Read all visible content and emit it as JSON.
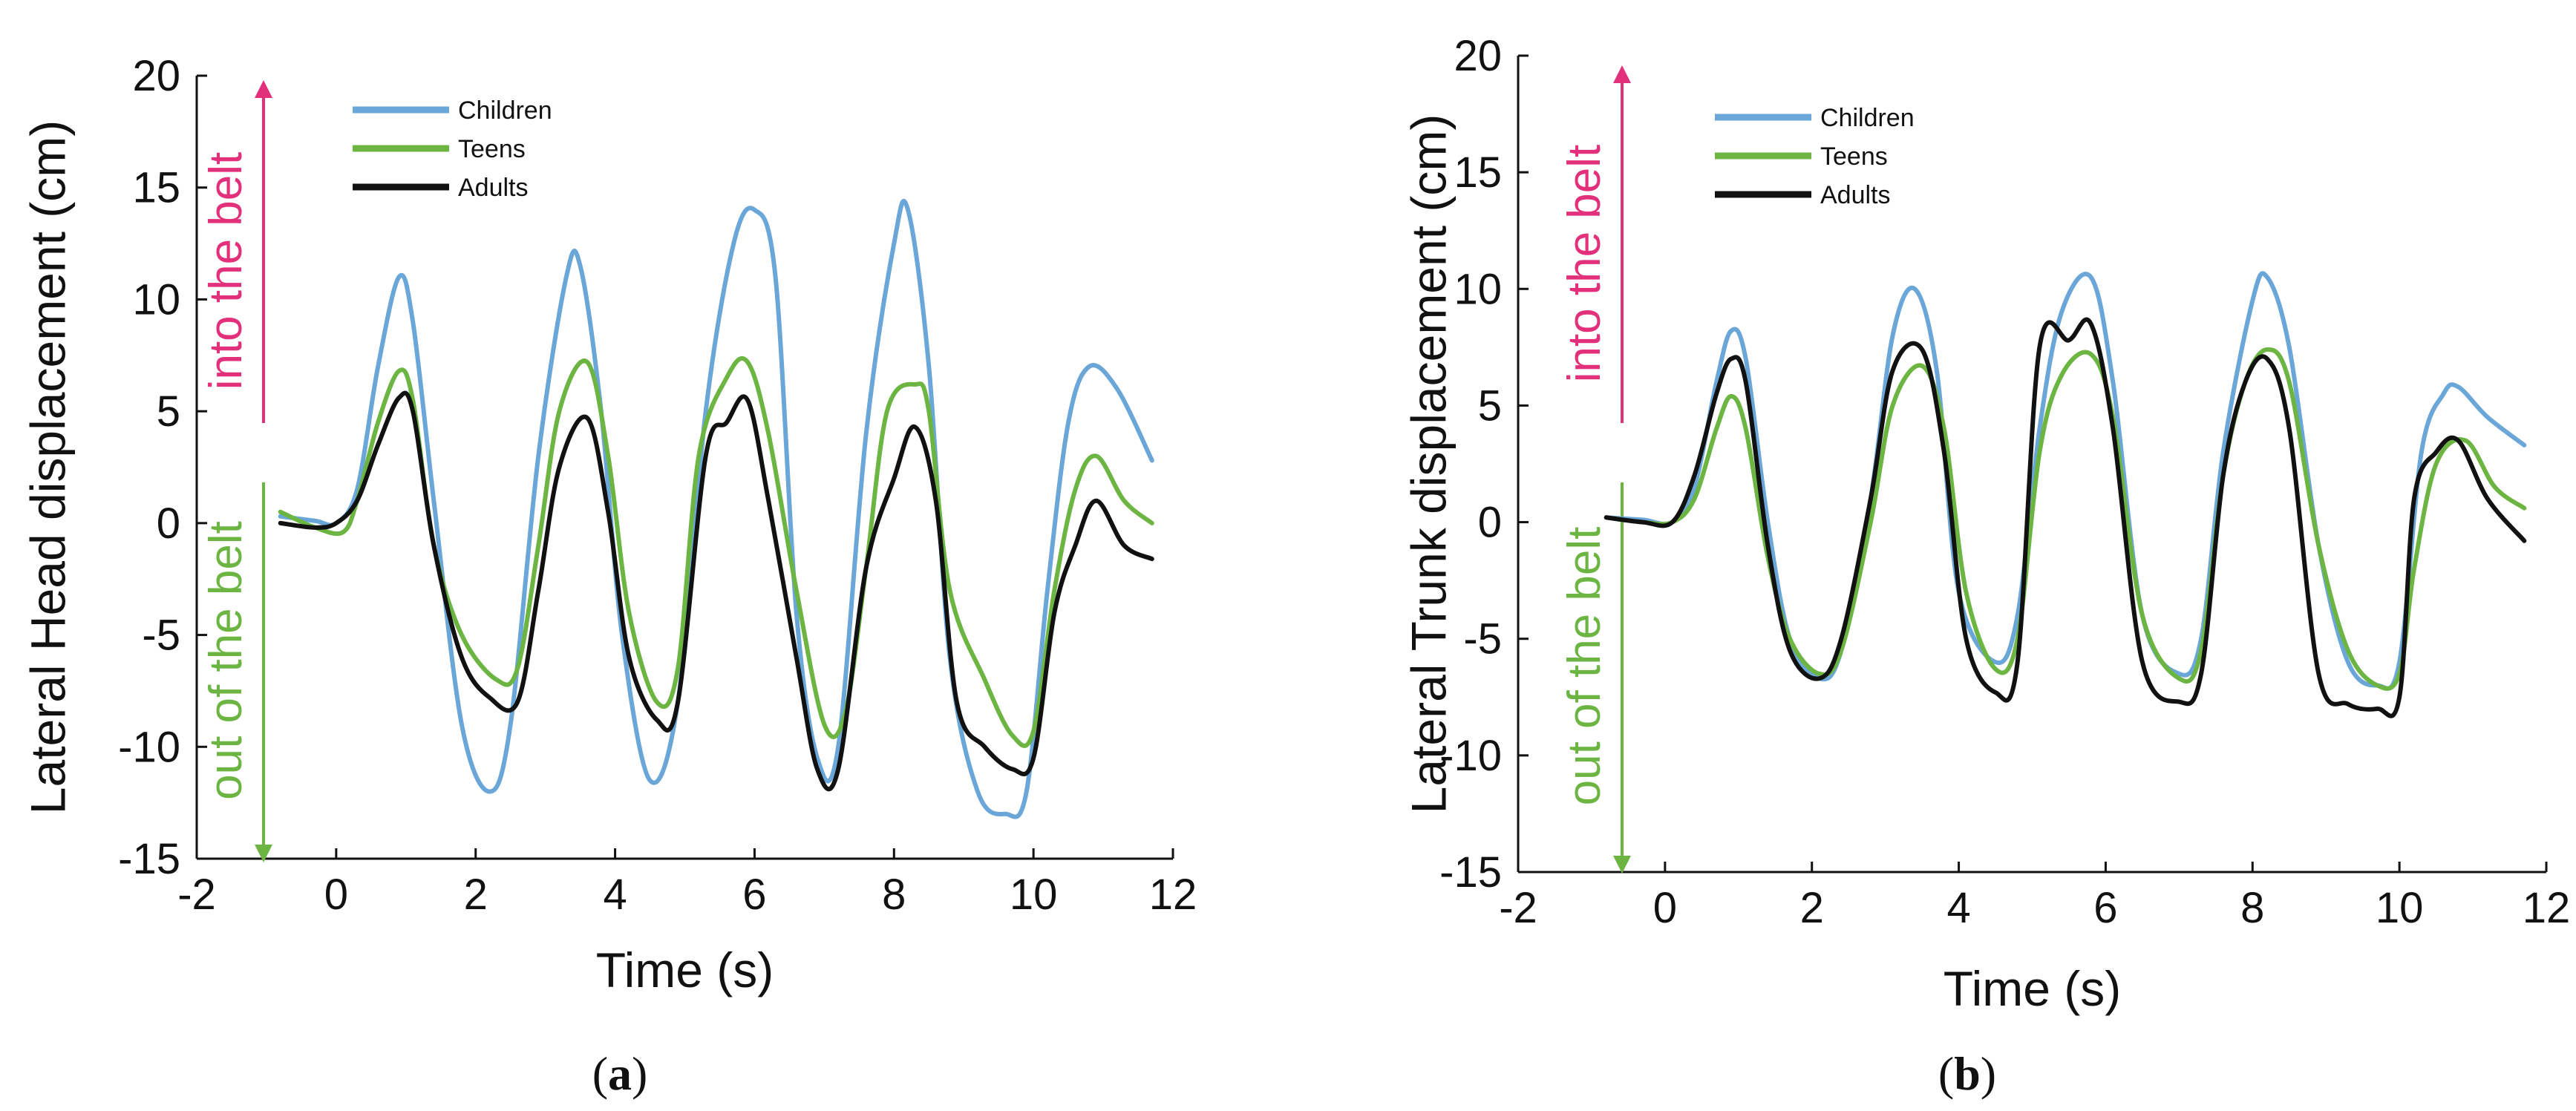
{
  "colors": {
    "children": "#6aa6d8",
    "teens": "#6db543",
    "adults": "#111111",
    "into": "#e2317a",
    "out": "#6db543",
    "axis": "#111111"
  },
  "chart_data": [
    {
      "type": "line",
      "panel_id": "a",
      "caption_letter": "a",
      "ylabel": "Lateral Head displacement (cm)",
      "xlabel": "Time (s)",
      "xlim": [
        -2,
        12
      ],
      "ylim": [
        -15,
        20
      ],
      "xticks": [
        -2,
        0,
        2,
        4,
        6,
        8,
        10,
        12
      ],
      "yticks": [
        -15,
        -10,
        -5,
        0,
        5,
        10,
        15,
        20
      ],
      "grid": false,
      "legend": "top-left",
      "annotations": {
        "up": "into the belt",
        "down": "out of the belt"
      },
      "series": [
        {
          "name": "Children",
          "color_key": "children",
          "points": [
            [
              -0.8,
              0.3
            ],
            [
              -0.3,
              0.1
            ],
            [
              0.0,
              0.0
            ],
            [
              0.3,
              1.5
            ],
            [
              0.6,
              7.0
            ],
            [
              0.9,
              11.0
            ],
            [
              1.1,
              9.0
            ],
            [
              1.4,
              1.0
            ],
            [
              1.8,
              -9.0
            ],
            [
              2.2,
              -12.0
            ],
            [
              2.5,
              -9.0
            ],
            [
              2.9,
              3.0
            ],
            [
              3.3,
              11.0
            ],
            [
              3.5,
              11.5
            ],
            [
              3.8,
              5.0
            ],
            [
              4.1,
              -5.0
            ],
            [
              4.5,
              -11.5
            ],
            [
              4.9,
              -8.0
            ],
            [
              5.3,
              5.0
            ],
            [
              5.7,
              12.5
            ],
            [
              6.0,
              14.0
            ],
            [
              6.3,
              11.0
            ],
            [
              6.6,
              -4.0
            ],
            [
              6.9,
              -10.5
            ],
            [
              7.2,
              -10.0
            ],
            [
              7.6,
              4.0
            ],
            [
              8.0,
              12.5
            ],
            [
              8.2,
              14.0
            ],
            [
              8.5,
              7.0
            ],
            [
              8.8,
              -6.0
            ],
            [
              9.2,
              -12.0
            ],
            [
              9.6,
              -13.0
            ],
            [
              9.9,
              -12.0
            ],
            [
              10.2,
              -3.0
            ],
            [
              10.5,
              4.5
            ],
            [
              10.8,
              7.0
            ],
            [
              11.2,
              6.0
            ],
            [
              11.7,
              2.8
            ]
          ]
        },
        {
          "name": "Teens",
          "color_key": "teens",
          "points": [
            [
              -0.8,
              0.5
            ],
            [
              -0.3,
              -0.2
            ],
            [
              0.1,
              -0.4
            ],
            [
              0.3,
              1.0
            ],
            [
              0.6,
              4.5
            ],
            [
              0.9,
              6.8
            ],
            [
              1.1,
              5.5
            ],
            [
              1.4,
              -1.0
            ],
            [
              1.8,
              -5.0
            ],
            [
              2.3,
              -7.0
            ],
            [
              2.6,
              -6.5
            ],
            [
              2.9,
              -1.0
            ],
            [
              3.2,
              5.0
            ],
            [
              3.6,
              7.2
            ],
            [
              3.9,
              3.0
            ],
            [
              4.2,
              -4.0
            ],
            [
              4.6,
              -8.0
            ],
            [
              4.9,
              -6.5
            ],
            [
              5.2,
              3.0
            ],
            [
              5.6,
              6.5
            ],
            [
              5.9,
              7.2
            ],
            [
              6.2,
              4.0
            ],
            [
              6.6,
              -3.0
            ],
            [
              7.0,
              -9.0
            ],
            [
              7.3,
              -8.5
            ],
            [
              7.6,
              -2.0
            ],
            [
              7.9,
              5.0
            ],
            [
              8.3,
              6.2
            ],
            [
              8.5,
              5.0
            ],
            [
              8.8,
              -3.0
            ],
            [
              9.3,
              -7.0
            ],
            [
              9.7,
              -9.5
            ],
            [
              10.0,
              -9.3
            ],
            [
              10.3,
              -3.0
            ],
            [
              10.6,
              1.5
            ],
            [
              10.9,
              3.0
            ],
            [
              11.3,
              1.0
            ],
            [
              11.7,
              0.0
            ]
          ]
        },
        {
          "name": "Adults",
          "color_key": "adults",
          "points": [
            [
              -0.8,
              0.0
            ],
            [
              -0.3,
              -0.2
            ],
            [
              0.0,
              0.0
            ],
            [
              0.3,
              1.0
            ],
            [
              0.6,
              3.5
            ],
            [
              0.9,
              5.6
            ],
            [
              1.1,
              5.0
            ],
            [
              1.4,
              -1.0
            ],
            [
              1.8,
              -6.0
            ],
            [
              2.2,
              -7.8
            ],
            [
              2.6,
              -8.0
            ],
            [
              2.9,
              -3.0
            ],
            [
              3.2,
              2.5
            ],
            [
              3.6,
              4.7
            ],
            [
              3.9,
              0.5
            ],
            [
              4.2,
              -6.0
            ],
            [
              4.6,
              -8.8
            ],
            [
              4.9,
              -8.0
            ],
            [
              5.3,
              3.0
            ],
            [
              5.6,
              4.5
            ],
            [
              5.9,
              5.5
            ],
            [
              6.2,
              1.0
            ],
            [
              6.6,
              -6.0
            ],
            [
              6.9,
              -11.0
            ],
            [
              7.2,
              -11.0
            ],
            [
              7.6,
              -2.0
            ],
            [
              8.0,
              2.0
            ],
            [
              8.3,
              4.3
            ],
            [
              8.6,
              1.0
            ],
            [
              8.9,
              -8.0
            ],
            [
              9.3,
              -10.0
            ],
            [
              9.7,
              -11.0
            ],
            [
              10.0,
              -10.5
            ],
            [
              10.3,
              -4.0
            ],
            [
              10.6,
              -1.0
            ],
            [
              10.9,
              1.0
            ],
            [
              11.3,
              -1.0
            ],
            [
              11.7,
              -1.6
            ]
          ]
        }
      ]
    },
    {
      "type": "line",
      "panel_id": "b",
      "caption_letter": "b",
      "ylabel": "Lateral Trunk displacement (cm)",
      "xlabel": "Time (s)",
      "xlim": [
        -2,
        12
      ],
      "ylim": [
        -15,
        20
      ],
      "xticks": [
        -2,
        0,
        2,
        4,
        6,
        8,
        10,
        12
      ],
      "yticks": [
        -15,
        -10,
        -5,
        0,
        5,
        10,
        15,
        20
      ],
      "grid": false,
      "legend": "top-left",
      "annotations": {
        "up": "into the belt",
        "down": "out of the belt"
      },
      "series": [
        {
          "name": "Children",
          "color_key": "children",
          "points": [
            [
              -0.8,
              0.2
            ],
            [
              -0.3,
              0.1
            ],
            [
              0.1,
              0.0
            ],
            [
              0.4,
              1.5
            ],
            [
              0.7,
              6.0
            ],
            [
              0.9,
              8.2
            ],
            [
              1.1,
              7.0
            ],
            [
              1.4,
              0.0
            ],
            [
              1.7,
              -5.0
            ],
            [
              2.1,
              -6.7
            ],
            [
              2.4,
              -5.5
            ],
            [
              2.8,
              1.0
            ],
            [
              3.1,
              8.0
            ],
            [
              3.4,
              10.0
            ],
            [
              3.7,
              6.5
            ],
            [
              4.0,
              -3.0
            ],
            [
              4.5,
              -6.0
            ],
            [
              4.8,
              -4.0
            ],
            [
              5.1,
              4.0
            ],
            [
              5.4,
              9.0
            ],
            [
              5.8,
              10.5
            ],
            [
              6.1,
              6.0
            ],
            [
              6.5,
              -4.0
            ],
            [
              7.0,
              -6.5
            ],
            [
              7.3,
              -5.0
            ],
            [
              7.6,
              3.0
            ],
            [
              8.0,
              9.5
            ],
            [
              8.2,
              10.5
            ],
            [
              8.5,
              7.5
            ],
            [
              8.9,
              -1.0
            ],
            [
              9.3,
              -6.0
            ],
            [
              9.7,
              -7.0
            ],
            [
              10.0,
              -6.0
            ],
            [
              10.3,
              3.0
            ],
            [
              10.6,
              5.5
            ],
            [
              10.8,
              5.8
            ],
            [
              11.2,
              4.5
            ],
            [
              11.7,
              3.3
            ]
          ]
        },
        {
          "name": "Teens",
          "color_key": "teens",
          "points": [
            [
              -0.8,
              0.2
            ],
            [
              -0.3,
              0.0
            ],
            [
              0.1,
              0.0
            ],
            [
              0.4,
              1.0
            ],
            [
              0.7,
              4.0
            ],
            [
              0.9,
              5.4
            ],
            [
              1.1,
              4.0
            ],
            [
              1.4,
              -1.5
            ],
            [
              1.7,
              -5.0
            ],
            [
              2.1,
              -6.5
            ],
            [
              2.4,
              -5.5
            ],
            [
              2.8,
              0.0
            ],
            [
              3.1,
              5.0
            ],
            [
              3.5,
              6.7
            ],
            [
              3.8,
              4.0
            ],
            [
              4.1,
              -3.0
            ],
            [
              4.5,
              -6.3
            ],
            [
              4.8,
              -5.0
            ],
            [
              5.1,
              3.0
            ],
            [
              5.4,
              6.3
            ],
            [
              5.8,
              7.2
            ],
            [
              6.1,
              4.5
            ],
            [
              6.5,
              -4.0
            ],
            [
              7.0,
              -6.7
            ],
            [
              7.3,
              -5.5
            ],
            [
              7.6,
              2.0
            ],
            [
              7.9,
              6.0
            ],
            [
              8.2,
              7.4
            ],
            [
              8.5,
              6.0
            ],
            [
              8.9,
              -1.0
            ],
            [
              9.3,
              -5.5
            ],
            [
              9.7,
              -7.0
            ],
            [
              10.0,
              -6.5
            ],
            [
              10.2,
              -2.0
            ],
            [
              10.5,
              2.5
            ],
            [
              10.9,
              3.5
            ],
            [
              11.3,
              1.5
            ],
            [
              11.7,
              0.6
            ]
          ]
        },
        {
          "name": "Adults",
          "color_key": "adults",
          "points": [
            [
              -0.8,
              0.2
            ],
            [
              -0.3,
              0.0
            ],
            [
              0.1,
              0.0
            ],
            [
              0.4,
              2.0
            ],
            [
              0.7,
              5.5
            ],
            [
              0.9,
              7.0
            ],
            [
              1.1,
              6.0
            ],
            [
              1.4,
              -1.0
            ],
            [
              1.7,
              -5.5
            ],
            [
              2.1,
              -6.7
            ],
            [
              2.4,
              -5.0
            ],
            [
              2.8,
              1.0
            ],
            [
              3.1,
              6.5
            ],
            [
              3.5,
              7.4
            ],
            [
              3.8,
              3.0
            ],
            [
              4.1,
              -5.0
            ],
            [
              4.5,
              -7.3
            ],
            [
              4.8,
              -6.0
            ],
            [
              5.1,
              7.5
            ],
            [
              5.5,
              7.8
            ],
            [
              5.8,
              8.5
            ],
            [
              6.1,
              4.0
            ],
            [
              6.5,
              -6.0
            ],
            [
              7.0,
              -7.7
            ],
            [
              7.3,
              -6.5
            ],
            [
              7.6,
              2.0
            ],
            [
              7.9,
              6.0
            ],
            [
              8.2,
              7.0
            ],
            [
              8.5,
              4.0
            ],
            [
              8.9,
              -6.5
            ],
            [
              9.3,
              -7.8
            ],
            [
              9.7,
              -8.0
            ],
            [
              10.0,
              -7.5
            ],
            [
              10.2,
              1.0
            ],
            [
              10.5,
              3.0
            ],
            [
              10.8,
              3.5
            ],
            [
              11.2,
              1.0
            ],
            [
              11.7,
              -0.8
            ]
          ]
        }
      ]
    }
  ]
}
